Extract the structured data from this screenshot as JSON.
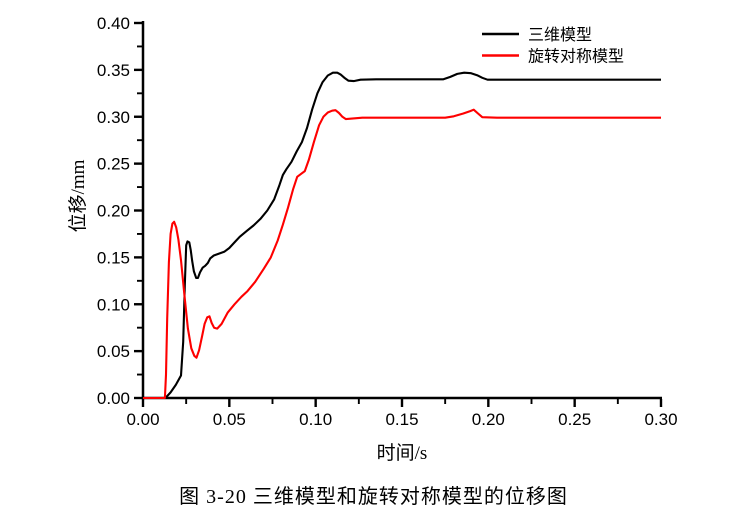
{
  "caption": "图 3-20  三维模型和旋转对称模型的位移图",
  "colors": {
    "background": "#ffffff",
    "axis": "#000000",
    "series_3d": "#000000",
    "series_axisymmetric": "#fe0000"
  },
  "chart_data": {
    "type": "line",
    "title": "",
    "xlabel": "时间/s",
    "ylabel": "位移/mm",
    "xlim": [
      0.0,
      0.3
    ],
    "ylim": [
      0.0,
      0.4
    ],
    "x_major_ticks": [
      0.0,
      0.05,
      0.1,
      0.15,
      0.2,
      0.25,
      0.3
    ],
    "y_major_ticks": [
      0.0,
      0.05,
      0.1,
      0.15,
      0.2,
      0.25,
      0.3,
      0.35,
      0.4
    ],
    "x_minor_ticks": [
      0.025,
      0.075,
      0.125,
      0.175,
      0.225,
      0.275
    ],
    "y_minor_ticks": [
      0.025,
      0.075,
      0.125,
      0.175,
      0.225,
      0.275,
      0.325,
      0.375
    ],
    "tick_decimals": 2,
    "grid": false,
    "legend_position": "top-right-inside",
    "series": [
      {
        "name": "三维模型",
        "color": "#000000",
        "points": [
          [
            0.0,
            0.0
          ],
          [
            0.013,
            0.0
          ],
          [
            0.016,
            0.006
          ],
          [
            0.019,
            0.014
          ],
          [
            0.022,
            0.024
          ],
          [
            0.0233,
            0.06
          ],
          [
            0.0242,
            0.12
          ],
          [
            0.025,
            0.163
          ],
          [
            0.0258,
            0.167
          ],
          [
            0.0268,
            0.166
          ],
          [
            0.0276,
            0.158
          ],
          [
            0.0285,
            0.146
          ],
          [
            0.0295,
            0.135
          ],
          [
            0.0308,
            0.128
          ],
          [
            0.0318,
            0.128
          ],
          [
            0.033,
            0.134
          ],
          [
            0.0345,
            0.139
          ],
          [
            0.036,
            0.141
          ],
          [
            0.0375,
            0.144
          ],
          [
            0.039,
            0.149
          ],
          [
            0.041,
            0.152
          ],
          [
            0.044,
            0.154
          ],
          [
            0.047,
            0.156
          ],
          [
            0.05,
            0.16
          ],
          [
            0.053,
            0.166
          ],
          [
            0.056,
            0.172
          ],
          [
            0.06,
            0.178
          ],
          [
            0.064,
            0.184
          ],
          [
            0.068,
            0.191
          ],
          [
            0.072,
            0.2
          ],
          [
            0.076,
            0.212
          ],
          [
            0.079,
            0.227
          ],
          [
            0.081,
            0.238
          ],
          [
            0.083,
            0.244
          ],
          [
            0.086,
            0.252
          ],
          [
            0.089,
            0.263
          ],
          [
            0.092,
            0.273
          ],
          [
            0.095,
            0.288
          ],
          [
            0.098,
            0.308
          ],
          [
            0.101,
            0.325
          ],
          [
            0.104,
            0.337
          ],
          [
            0.107,
            0.344
          ],
          [
            0.11,
            0.347
          ],
          [
            0.1125,
            0.347
          ],
          [
            0.1145,
            0.345
          ],
          [
            0.117,
            0.341
          ],
          [
            0.119,
            0.3385
          ],
          [
            0.122,
            0.338
          ],
          [
            0.126,
            0.3395
          ],
          [
            0.135,
            0.34
          ],
          [
            0.174,
            0.34
          ],
          [
            0.178,
            0.3425
          ],
          [
            0.182,
            0.3457
          ],
          [
            0.186,
            0.347
          ],
          [
            0.19,
            0.3465
          ],
          [
            0.1935,
            0.3443
          ],
          [
            0.1965,
            0.3415
          ],
          [
            0.1995,
            0.3395
          ],
          [
            0.205,
            0.3395
          ],
          [
            0.3,
            0.3395
          ]
        ]
      },
      {
        "name": "旋转对称模型",
        "color": "#fe0000",
        "points": [
          [
            0.0,
            0.0
          ],
          [
            0.0127,
            0.0
          ],
          [
            0.0133,
            0.025
          ],
          [
            0.014,
            0.085
          ],
          [
            0.015,
            0.145
          ],
          [
            0.016,
            0.175
          ],
          [
            0.017,
            0.186
          ],
          [
            0.018,
            0.188
          ],
          [
            0.0192,
            0.182
          ],
          [
            0.0205,
            0.169
          ],
          [
            0.022,
            0.147
          ],
          [
            0.024,
            0.11
          ],
          [
            0.026,
            0.074
          ],
          [
            0.028,
            0.053
          ],
          [
            0.0297,
            0.045
          ],
          [
            0.031,
            0.043
          ],
          [
            0.0325,
            0.051
          ],
          [
            0.0342,
            0.066
          ],
          [
            0.0357,
            0.079
          ],
          [
            0.0372,
            0.086
          ],
          [
            0.0385,
            0.087
          ],
          [
            0.0398,
            0.08
          ],
          [
            0.0412,
            0.075
          ],
          [
            0.043,
            0.074
          ],
          [
            0.0455,
            0.079
          ],
          [
            0.049,
            0.091
          ],
          [
            0.053,
            0.1
          ],
          [
            0.057,
            0.108
          ],
          [
            0.0605,
            0.114
          ],
          [
            0.065,
            0.124
          ],
          [
            0.07,
            0.138
          ],
          [
            0.074,
            0.15
          ],
          [
            0.078,
            0.168
          ],
          [
            0.081,
            0.185
          ],
          [
            0.084,
            0.203
          ],
          [
            0.087,
            0.223
          ],
          [
            0.0893,
            0.236
          ],
          [
            0.0915,
            0.239
          ],
          [
            0.0937,
            0.242
          ],
          [
            0.096,
            0.254
          ],
          [
            0.099,
            0.273
          ],
          [
            0.102,
            0.291
          ],
          [
            0.1045,
            0.3
          ],
          [
            0.107,
            0.3045
          ],
          [
            0.1095,
            0.3065
          ],
          [
            0.1115,
            0.307
          ],
          [
            0.1135,
            0.304
          ],
          [
            0.1155,
            0.3
          ],
          [
            0.1175,
            0.2975
          ],
          [
            0.121,
            0.298
          ],
          [
            0.127,
            0.299
          ],
          [
            0.175,
            0.299
          ],
          [
            0.18,
            0.3005
          ],
          [
            0.1855,
            0.3035
          ],
          [
            0.1895,
            0.306
          ],
          [
            0.1915,
            0.3075
          ],
          [
            0.194,
            0.3035
          ],
          [
            0.1965,
            0.2995
          ],
          [
            0.205,
            0.299
          ],
          [
            0.3,
            0.299
          ]
        ]
      }
    ]
  }
}
